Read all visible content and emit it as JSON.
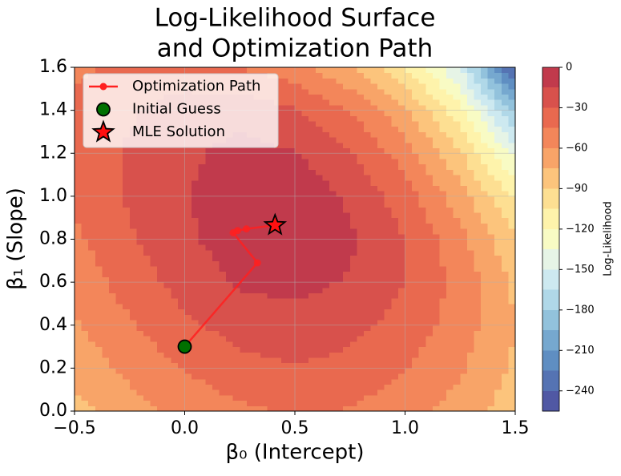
{
  "chart_data": {
    "type": "contour",
    "title": [
      "Log-Likelihood Surface",
      "and Optimization Path"
    ],
    "xlabel": "β₀ (Intercept)",
    "ylabel": "β₁ (Slope)",
    "xlim": [
      -0.5,
      1.5
    ],
    "ylim": [
      0,
      1.6
    ],
    "xticks": [
      {
        "value": -0.5,
        "label": "−0.5"
      },
      {
        "value": 0,
        "label": "0.0"
      },
      0.5,
      {
        "value": 1,
        "label": "1.0"
      },
      1.5
    ],
    "yticks": [
      {
        "value": 0,
        "label": "0.0"
      },
      0.2,
      0.4,
      0.6,
      0.8,
      {
        "value": 1,
        "label": "1.0"
      },
      1.2,
      1.4,
      1.6
    ],
    "grid": true,
    "legend": "upper left",
    "surface": {
      "x": [
        -0.5,
        -0.25,
        0,
        0.25,
        0.5,
        0.75,
        1,
        1.25,
        1.5
      ],
      "y": [
        0,
        0.2,
        0.4,
        0.6,
        0.8,
        1,
        1.2,
        1.4,
        1.6
      ],
      "z": [
        [
          -80,
          -66,
          -56,
          -48,
          -44,
          -46,
          -54,
          -66,
          -84
        ],
        [
          -70,
          -56,
          -44,
          -35,
          -31,
          -35,
          -44,
          -58,
          -78
        ],
        [
          -62,
          -47,
          -33,
          -24,
          -20,
          -25,
          -36,
          -52,
          -75
        ],
        [
          -55,
          -38,
          -24,
          -13,
          -11,
          -16,
          -30,
          -50,
          -78
        ],
        [
          -48,
          -32,
          -18,
          -7,
          -3,
          -13,
          -30,
          -55,
          -88
        ],
        [
          -42,
          -28,
          -16,
          -6,
          -5,
          -17,
          -38,
          -68,
          -108
        ],
        [
          -40,
          -28,
          -18,
          -10,
          -14,
          -28,
          -52,
          -88,
          -140
        ],
        [
          -42,
          -32,
          -22,
          -20,
          -28,
          -45,
          -72,
          -115,
          -185
        ],
        [
          -48,
          -42,
          -40,
          -45,
          -55,
          -75,
          -105,
          -150,
          -250
        ]
      ]
    },
    "levels": [
      0,
      -15,
      -30,
      -45,
      -60,
      -75,
      -90,
      -105,
      -120,
      -135,
      -150,
      -165,
      -180,
      -195,
      -210,
      -225,
      -240,
      -255
    ],
    "colors": [
      "#c13a4c",
      "#d8514c",
      "#e9694f",
      "#f3865a",
      "#f8a468",
      "#fcc47c",
      "#fddf92",
      "#fef3ab",
      "#f8fbc4",
      "#e6f4e6",
      "#cde9f0",
      "#b0d8e8",
      "#92c2dc",
      "#76a8cf",
      "#5f8ec2",
      "#5573b3",
      "#5058a4"
    ],
    "colorbar": {
      "label": "Log-Likelihood",
      "ticks": [
        0,
        {
          "value": -30,
          "label": "−30"
        },
        {
          "value": -60,
          "label": "−60"
        },
        {
          "value": -90,
          "label": "−90"
        },
        {
          "value": -120,
          "label": "−120"
        },
        {
          "value": -150,
          "label": "−150"
        },
        {
          "value": -180,
          "label": "−180"
        },
        {
          "value": -210,
          "label": "−210"
        },
        {
          "value": -240,
          "label": "−240"
        }
      ]
    },
    "series": [
      {
        "name": "Optimization Path",
        "marker": "line",
        "color": "#ff2020",
        "x": [
          0,
          0.33,
          0.22,
          0.24,
          0.28,
          0.41
        ],
        "y": [
          0.3,
          0.69,
          0.83,
          0.84,
          0.848,
          0.865
        ]
      },
      {
        "name": "Initial Guess",
        "marker": "circle",
        "color": "#007000",
        "x": [
          0
        ],
        "y": [
          0.3
        ]
      },
      {
        "name": "MLE Solution",
        "marker": "star",
        "color": "#ff1010",
        "x": [
          0.41
        ],
        "y": [
          0.865
        ]
      }
    ]
  }
}
